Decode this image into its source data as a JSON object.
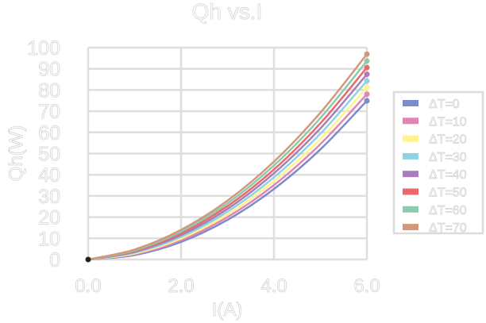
{
  "chart_data": {
    "type": "line",
    "title": "Qh vs.I",
    "xlabel": "I(A)",
    "ylabel": "Qh(W)",
    "xlim": [
      0,
      6
    ],
    "ylim": [
      0,
      100
    ],
    "x_ticks": [
      "0.0",
      "2.0",
      "4.0",
      "6.0"
    ],
    "x_tick_values": [
      0,
      2,
      4,
      6
    ],
    "y_ticks": [
      0,
      10,
      20,
      30,
      40,
      50,
      60,
      70,
      80,
      90,
      100
    ],
    "grid": true,
    "legend_position": "right",
    "x": [
      0,
      1,
      2,
      3,
      4,
      5,
      6
    ],
    "series": [
      {
        "name": "ΔT=0",
        "color": "#7a8ccc",
        "values": [
          0,
          2.1,
          8.3,
          18.7,
          33.3,
          52.0,
          74.9
        ]
      },
      {
        "name": "ΔT=10",
        "color": "#e384b4",
        "values": [
          0,
          2.5,
          9.1,
          20.0,
          35.1,
          54.5,
          78.0
        ]
      },
      {
        "name": "ΔT=20",
        "color": "#fff38a",
        "values": [
          0,
          2.8,
          9.9,
          21.3,
          37.0,
          56.9,
          81.2
        ]
      },
      {
        "name": "ΔT=30",
        "color": "#8fd3e0",
        "values": [
          0,
          3.2,
          10.7,
          22.6,
          38.8,
          59.4,
          84.3
        ]
      },
      {
        "name": "ΔT=40",
        "color": "#a97dbb",
        "values": [
          0,
          3.6,
          11.5,
          23.9,
          40.7,
          61.9,
          87.4
        ]
      },
      {
        "name": "ΔT=50",
        "color": "#ea6a6a",
        "values": [
          0,
          4.0,
          12.4,
          25.2,
          42.5,
          64.3,
          90.6
        ]
      },
      {
        "name": "ΔT=60",
        "color": "#8dcbb0",
        "values": [
          0,
          4.3,
          13.2,
          26.5,
          44.4,
          66.8,
          93.7
        ]
      },
      {
        "name": "ΔT=70",
        "color": "#d2987a",
        "values": [
          0,
          4.7,
          14.0,
          27.8,
          46.2,
          69.3,
          96.9
        ]
      }
    ],
    "origin_marker_color": "#222222"
  }
}
